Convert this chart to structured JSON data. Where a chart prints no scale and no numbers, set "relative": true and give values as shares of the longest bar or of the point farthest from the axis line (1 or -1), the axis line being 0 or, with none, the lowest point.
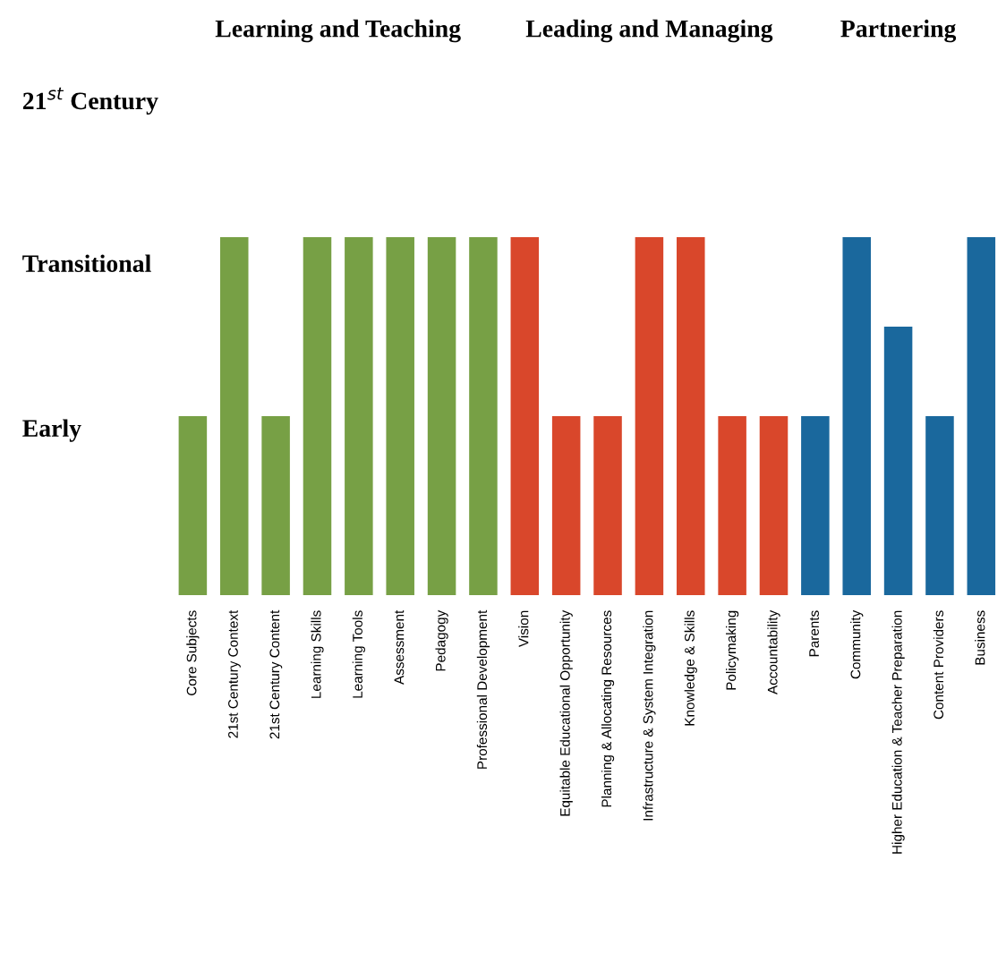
{
  "chart_data": {
    "type": "bar",
    "categories": [
      "Core Subjects",
      "21st Century Context",
      "21st Century Content",
      "Learning Skills",
      "Learning Tools",
      "Assessment",
      "Pedagogy",
      "Professional Development",
      "Vision",
      "Equitable Educational Opportunity",
      "Planning & Allocating Resources",
      "Infrastructure & System Integration",
      "Knowledge & Skills",
      "Policymaking",
      "Accountability",
      "Parents",
      "Community",
      "Higher Education & Teacher Preparation",
      "Content Providers",
      "Business"
    ],
    "values": [
      0.5,
      1,
      0.5,
      1,
      1,
      1,
      1,
      1,
      1,
      0.5,
      0.5,
      1,
      1,
      0.5,
      0.5,
      0.5,
      1,
      0.75,
      0.5,
      1
    ],
    "relative": true,
    "colors": [
      "#77a045",
      "#77a045",
      "#77a045",
      "#77a045",
      "#77a045",
      "#77a045",
      "#77a045",
      "#77a045",
      "#d9472b",
      "#d9472b",
      "#d9472b",
      "#d9472b",
      "#d9472b",
      "#d9472b",
      "#d9472b",
      "#1a689d",
      "#1a689d",
      "#1a689d",
      "#1a689d",
      "#1a689d"
    ],
    "annotations": [
      "Learning and Teaching",
      "Leading and Managing",
      "Partnering",
      "21$^{st}$ Century",
      "Transitional",
      "Early"
    ],
    "grid": false,
    "legend": false
  }
}
